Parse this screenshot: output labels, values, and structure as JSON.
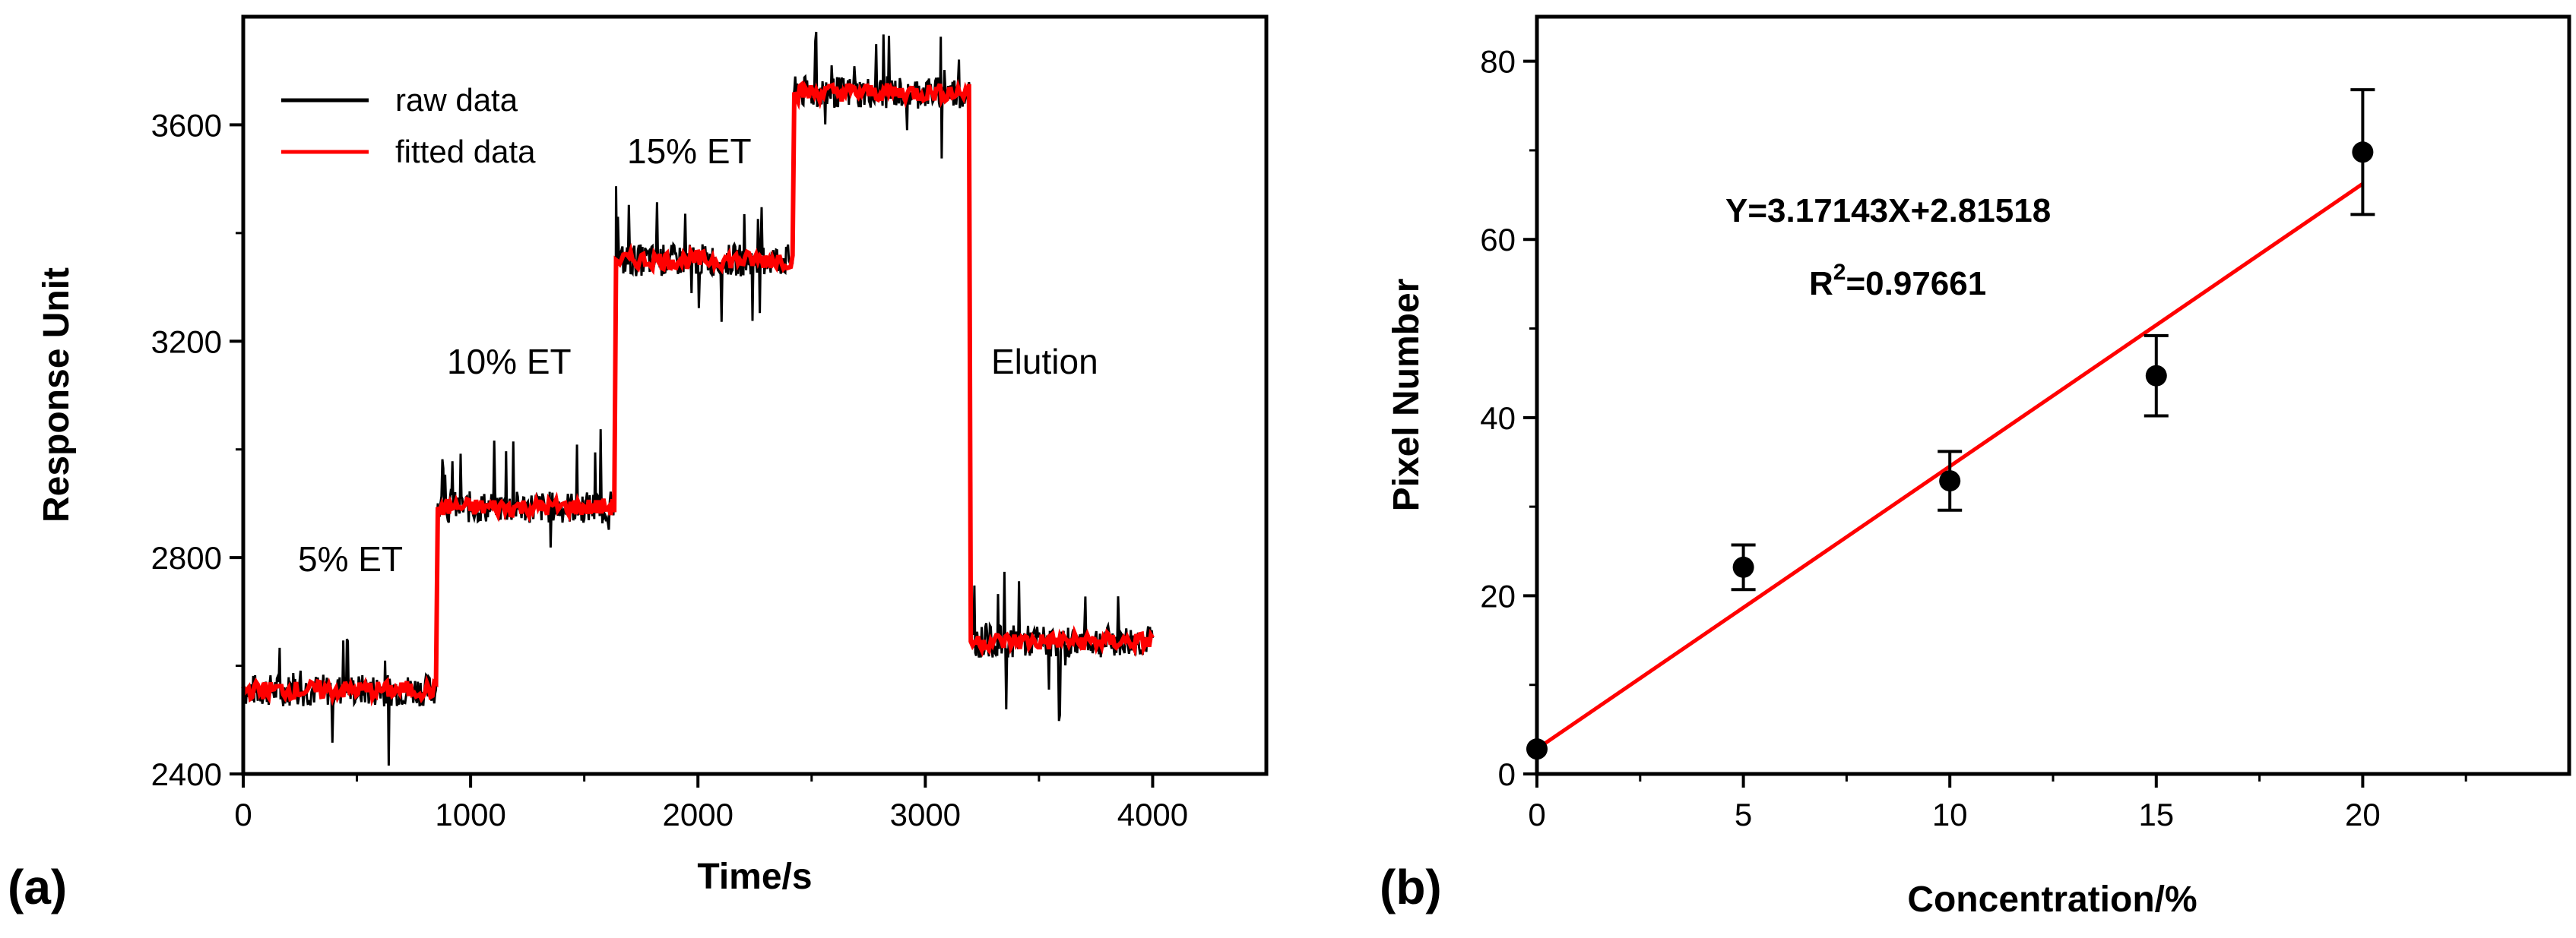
{
  "chart_data": [
    {
      "panel": "(a)",
      "type": "line",
      "xlabel": "Time/s",
      "ylabel": "Response Unit",
      "xlim": [
        0,
        4500
      ],
      "ylim": [
        2400,
        3800
      ],
      "xticks": [
        0,
        1000,
        2000,
        3000,
        4000
      ],
      "yticks": [
        2400,
        2800,
        3200,
        3600
      ],
      "xtick_labels": [
        "0",
        "1000",
        "2000",
        "3000",
        "4000"
      ],
      "ytick_labels": [
        "2400",
        "2800",
        "3200",
        "3600"
      ],
      "legend": {
        "position": "top-left",
        "entries": [
          {
            "label": "raw data",
            "color": "#000000"
          },
          {
            "label": "fitted data",
            "color": "#ff0000"
          }
        ]
      },
      "series": [
        {
          "name": "fitted data",
          "color": "#ff0000",
          "steps": [
            {
              "x_start": 0,
              "x_end": 850,
              "y": 2555
            },
            {
              "x_start": 850,
              "x_end": 1640,
              "y": 2893
            },
            {
              "x_start": 1640,
              "x_end": 2420,
              "y": 3350
            },
            {
              "x_start": 2420,
              "x_end": 3200,
              "y": 3660
            },
            {
              "x_start": 3200,
              "x_end": 4000,
              "y": 2645
            }
          ]
        },
        {
          "name": "raw data",
          "color": "#000000",
          "noise_amplitude": 30,
          "spike_amplitude": 100
        }
      ],
      "annotations": [
        {
          "text": "5% ET",
          "x": 560,
          "y": 2795
        },
        {
          "text": "10% ET",
          "x": 1430,
          "y": 3145
        },
        {
          "text": "15% ET",
          "x": 2250,
          "y": 3545
        },
        {
          "text": "Elution",
          "x": 3280,
          "y": 3145
        }
      ]
    },
    {
      "panel": "(b)",
      "type": "scatter",
      "xlabel": "Concentration/%",
      "ylabel": "Pixel Number",
      "xlim": [
        0,
        25
      ],
      "ylim": [
        0,
        85
      ],
      "xticks": [
        0,
        5,
        10,
        15,
        20
      ],
      "yticks": [
        0,
        20,
        40,
        60,
        80
      ],
      "xtick_labels": [
        "0",
        "5",
        "10",
        "15",
        "20"
      ],
      "ytick_labels": [
        "0",
        "20",
        "40",
        "60",
        "80"
      ],
      "points": [
        {
          "x": 0,
          "y": 2.8
        },
        {
          "x": 5,
          "y": 23.2,
          "err": 2.5
        },
        {
          "x": 10,
          "y": 32.9,
          "err": 3.3
        },
        {
          "x": 15,
          "y": 44.7,
          "err": 4.5
        },
        {
          "x": 20,
          "y": 69.8,
          "err": 7.0
        }
      ],
      "fit": {
        "slope": 3.17143,
        "intercept": 2.81518,
        "x_range": [
          0,
          20
        ],
        "color": "#ff0000"
      },
      "equation_text": "Y=3.17143X+2.81518",
      "r2_prefix": "R",
      "r2_sup": "2",
      "r2_suffix": "=0.97661"
    }
  ]
}
